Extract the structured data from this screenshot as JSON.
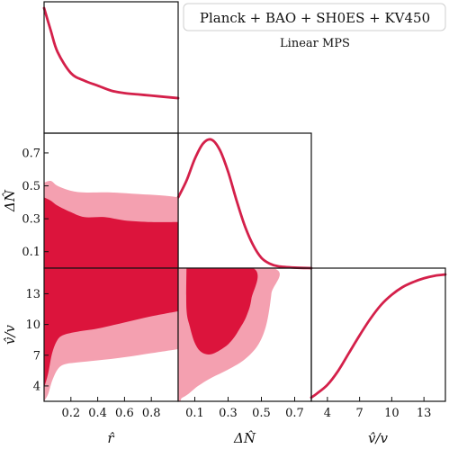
{
  "legend": {
    "label": "Planck + BAO + SH0ES + KV450",
    "subtitle": "Linear MPS"
  },
  "colors": {
    "line": "#d4204a",
    "inner": "#dc143c",
    "outer": "#f4a0b0"
  },
  "chart_data": [
    {
      "type": "line",
      "panel": "r-marginal",
      "x": [
        0.0,
        0.05,
        0.1,
        0.2,
        0.3,
        0.4,
        0.5,
        0.6,
        0.7,
        0.8,
        0.9,
        1.0
      ],
      "y": [
        1.0,
        0.82,
        0.65,
        0.48,
        0.42,
        0.38,
        0.34,
        0.32,
        0.31,
        0.3,
        0.29,
        0.28
      ],
      "xlim": [
        0,
        1.0
      ],
      "ylim": [
        0,
        1.05
      ]
    },
    {
      "type": "line",
      "panel": "dN-marginal",
      "x": [
        0.0,
        0.05,
        0.1,
        0.15,
        0.2,
        0.25,
        0.3,
        0.35,
        0.4,
        0.45,
        0.5,
        0.55,
        0.6,
        0.7,
        0.8
      ],
      "y": [
        0.55,
        0.68,
        0.85,
        0.97,
        1.0,
        0.92,
        0.75,
        0.53,
        0.33,
        0.18,
        0.08,
        0.035,
        0.015,
        0.004,
        0.0
      ],
      "xlim": [
        0,
        0.8
      ],
      "ylim": [
        0,
        1.05
      ]
    },
    {
      "type": "line",
      "panel": "v-marginal",
      "x": [
        2.5,
        3,
        4,
        5,
        6,
        7,
        8,
        9,
        10,
        11,
        12,
        13,
        14,
        15
      ],
      "y": [
        0.03,
        0.06,
        0.13,
        0.24,
        0.38,
        0.52,
        0.65,
        0.76,
        0.84,
        0.9,
        0.94,
        0.97,
        0.99,
        1.0
      ],
      "xlim": [
        2.5,
        15
      ],
      "ylim": [
        0,
        1.05
      ]
    },
    {
      "type": "area",
      "panel": "dN-vs-r",
      "xlabel": "",
      "ylabel": "ΔN̂",
      "xlim": [
        0,
        1.0
      ],
      "ylim": [
        0,
        0.82
      ],
      "yticks": [
        0.1,
        0.3,
        0.5,
        0.7
      ],
      "ytick_labels": [
        "0.1",
        "0.3",
        "0.5",
        "0.7"
      ],
      "outer_upper": {
        "x": [
          0.0,
          0.05,
          0.1,
          0.2,
          0.3,
          0.5,
          0.7,
          0.9,
          1.0
        ],
        "y": [
          0.52,
          0.53,
          0.5,
          0.47,
          0.46,
          0.46,
          0.45,
          0.44,
          0.43
        ]
      },
      "outer_lower": {
        "x": [
          0.0,
          0.3,
          0.31,
          1.0
        ],
        "y": [
          0.0,
          0.0,
          0.04,
          0.04
        ]
      },
      "inner_upper": {
        "x": [
          0.0,
          0.05,
          0.1,
          0.2,
          0.3,
          0.45,
          0.6,
          0.8,
          1.0
        ],
        "y": [
          0.43,
          0.41,
          0.38,
          0.34,
          0.31,
          0.31,
          0.29,
          0.28,
          0.28
        ]
      },
      "inner_lower": {
        "x": [
          0.0,
          1.0
        ],
        "y": [
          0.0,
          0.0
        ]
      }
    },
    {
      "type": "area",
      "panel": "v-vs-r",
      "xlabel": "r̂",
      "ylabel": "v̂/v",
      "xlim": [
        0,
        1.0
      ],
      "ylim": [
        2.5,
        15.5
      ],
      "xticks": [
        0.2,
        0.4,
        0.6,
        0.8
      ],
      "xtick_labels": [
        "0.2",
        "0.4",
        "0.6",
        "0.8"
      ],
      "yticks": [
        4,
        7,
        10,
        13
      ],
      "ytick_labels": [
        "4",
        "7",
        "10",
        "13"
      ],
      "outer_upper": {
        "x": [
          0.0,
          1.0
        ],
        "y": [
          15.5,
          15.5
        ]
      },
      "outer_lower": {
        "x": [
          0.0,
          0.03,
          0.06,
          0.1,
          0.15,
          0.25,
          0.4,
          0.6,
          0.8,
          1.0
        ],
        "y": [
          2.5,
          3.2,
          4.5,
          5.6,
          6.1,
          6.3,
          6.5,
          6.8,
          7.2,
          7.6
        ]
      },
      "inner_upper": {
        "x": [
          0.0,
          1.0
        ],
        "y": [
          15.5,
          15.5
        ]
      },
      "inner_lower": {
        "x": [
          0.0,
          0.03,
          0.06,
          0.1,
          0.15,
          0.25,
          0.4,
          0.6,
          0.8,
          1.0
        ],
        "y": [
          3.8,
          5.2,
          7.2,
          8.5,
          9.0,
          9.3,
          9.6,
          10.2,
          10.8,
          11.3
        ]
      }
    },
    {
      "type": "area",
      "panel": "v-vs-dN",
      "xlabel": "ΔN̂",
      "xlim": [
        0,
        0.8
      ],
      "ylim": [
        2.5,
        15.5
      ],
      "xticks": [
        0.1,
        0.3,
        0.5,
        0.7
      ],
      "xtick_labels": [
        "0.1",
        "0.3",
        "0.5",
        "0.7"
      ],
      "outer_polygon": {
        "x": [
          0.0,
          0.57,
          0.56,
          0.53,
          0.48,
          0.4,
          0.3,
          0.2,
          0.12,
          0.06,
          0.02,
          0.0
        ],
        "y": [
          15.5,
          15.5,
          13.0,
          10.0,
          8.0,
          6.6,
          5.6,
          4.8,
          4.0,
          3.2,
          2.8,
          2.6
        ]
      },
      "inner_polygon": {
        "x": [
          0.05,
          0.45,
          0.44,
          0.41,
          0.37,
          0.33,
          0.28,
          0.2,
          0.14,
          0.1,
          0.07,
          0.05
        ],
        "y": [
          15.5,
          15.5,
          12.5,
          10.8,
          9.6,
          8.6,
          7.8,
          7.1,
          7.3,
          8.2,
          9.8,
          11.5
        ]
      }
    }
  ]
}
